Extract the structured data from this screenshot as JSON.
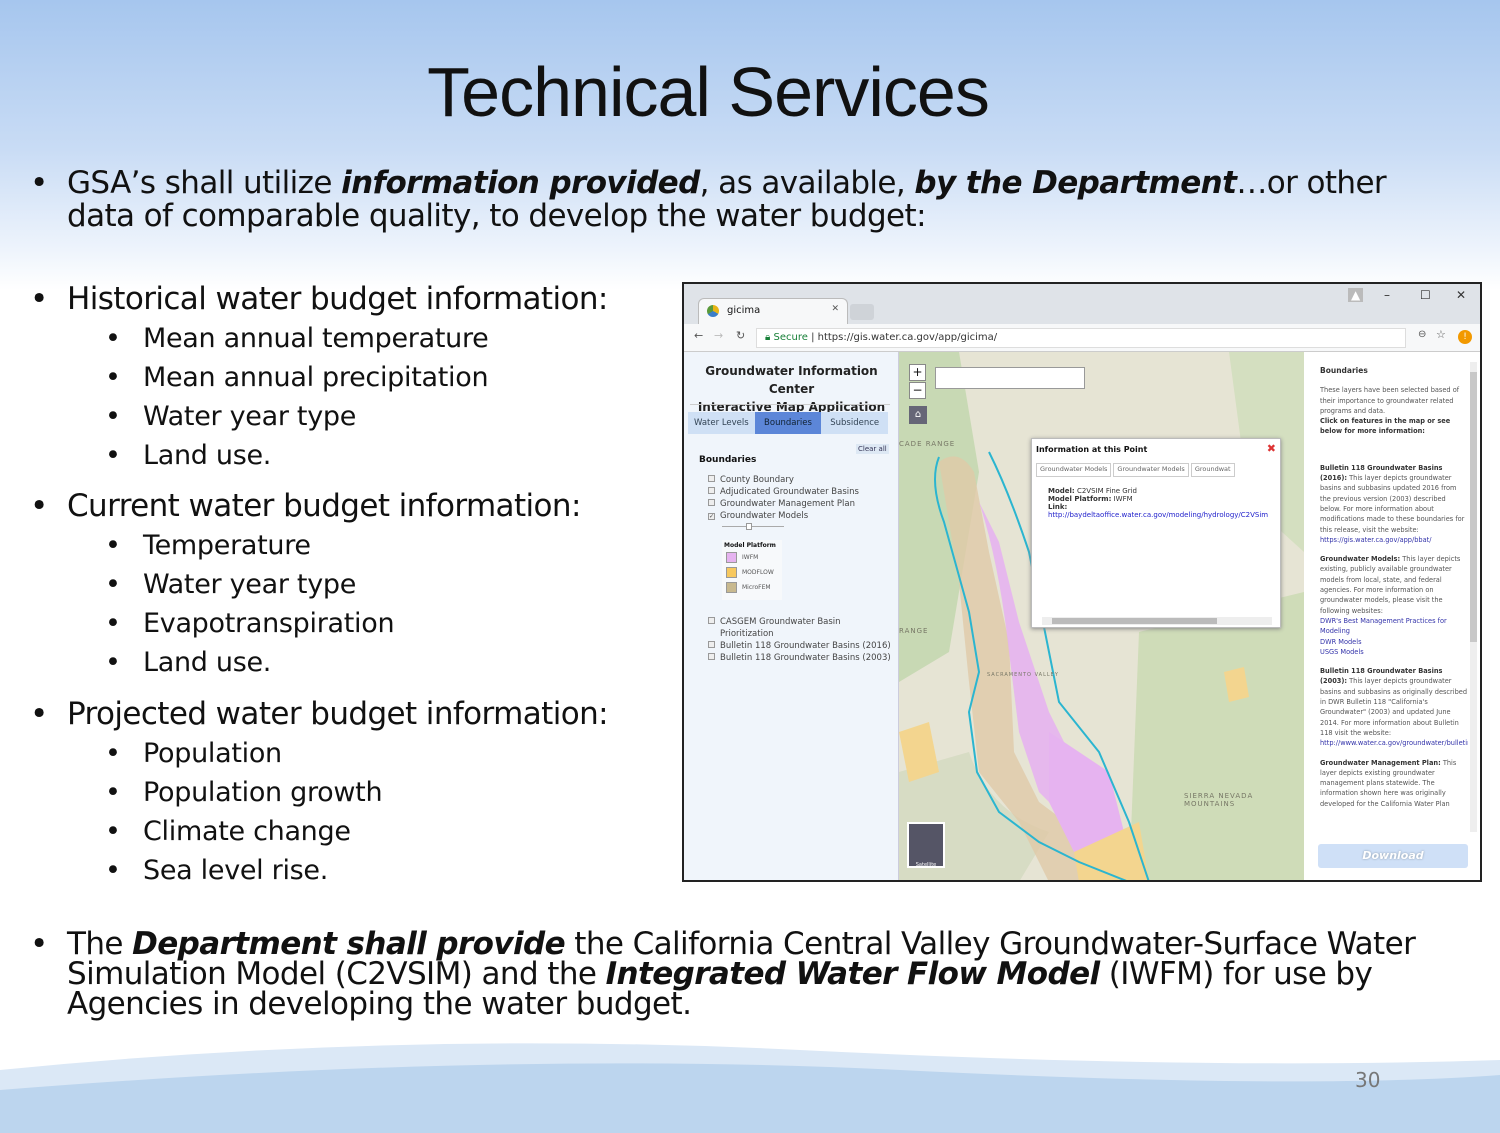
{
  "slide": {
    "title": "Technical Services",
    "page_number": "30"
  },
  "intro": {
    "pre": "GSA’s shall utilize ",
    "em1": "information provided",
    "mid": ", as available, ",
    "em2": "by the Department",
    "post": "…or other data of comparable quality, to develop the water budget:"
  },
  "sections": [
    {
      "heading": "Historical water budget information:",
      "items": [
        "Mean annual temperature",
        "Mean annual precipitation",
        "Water year type",
        "Land use."
      ]
    },
    {
      "heading": "Current water budget information:",
      "items": [
        "Temperature",
        "Water year type",
        "Evapotranspiration",
        "Land use."
      ]
    },
    {
      "heading": "Projected water budget information:",
      "items": [
        "Population",
        "Population growth",
        "Climate change",
        "Sea level rise."
      ]
    }
  ],
  "closing": {
    "pre": "The ",
    "em1": "Department shall provide",
    "mid": " the California Central Valley Groundwater-Surface Water Simulation Model (C2VSIM) and the ",
    "em2": "Integrated Water Flow Model",
    "post": " (IWFM) for use by Agencies in developing the water budget."
  },
  "browser": {
    "tab_title": "gicima",
    "secure": "Secure",
    "url": "https://gis.water.ca.gov/app/gicima/"
  },
  "app": {
    "title_line1": "Groundwater Information Center",
    "title_line2": "Interactive Map Application",
    "tabs": [
      "Water Levels",
      "Boundaries",
      "Subsidence"
    ],
    "active_tab": "Boundaries",
    "clear_all": "Clear all",
    "boundaries_heading": "Boundaries",
    "layers": [
      {
        "label": "County Boundary",
        "checked": false
      },
      {
        "label": "Adjudicated Groundwater Basins",
        "checked": false
      },
      {
        "label": "Groundwater Management Plan",
        "checked": false
      },
      {
        "label": "Groundwater Models",
        "checked": true
      }
    ],
    "layers2": [
      {
        "label": "CASGEM Groundwater Basin",
        "label2": "Prioritization",
        "checked": false
      },
      {
        "label": "Bulletin 118 Groundwater Basins (2016)",
        "checked": false
      },
      {
        "label": "Bulletin 118 Groundwater Basins (2003)",
        "checked": false
      }
    ],
    "legend": {
      "title": "Model Platform",
      "items": [
        {
          "label": "IWFM",
          "color": "#e6b3f0"
        },
        {
          "label": "MODFLOW",
          "color": "#f7c85e"
        },
        {
          "label": "MicroFEM",
          "color": "#c8b98f"
        }
      ]
    }
  },
  "map": {
    "popup": {
      "title": "Information at this Point",
      "tabs": [
        "Groundwater Models",
        "Groundwater Models",
        "Groundwat"
      ],
      "model_label": "Model:",
      "model": "C2VSIM Fine Grid",
      "platform_label": "Model Platform:",
      "platform": "IWFM",
      "link_label": "Link:",
      "link": "http://baydeltaoffice.water.ca.gov/modeling/hydrology/C2VSim"
    },
    "labels": [
      "SIERRA NEVADA MOUNTAINS",
      "SACRAMENTO VALLEY",
      "RANGE",
      "CADE RANGE"
    ],
    "satellite": "Satellite"
  },
  "info_panel": {
    "heading": "Boundaries",
    "intro": "These layers have been selected based of their importance to groundwater related programs and data.",
    "intro_bold": "Click on features in the map or see below for more information:",
    "entries": [
      {
        "title": "Bulletin 118 Groundwater Basins (2016):",
        "text": "This layer depicts groundwater basins and subbasins updated 2016 from the previous version (2003) described below. For more information about modifications made to these boundaries for this release, visit the website:",
        "links": [
          "https://gis.water.ca.gov/app/bbat/"
        ]
      },
      {
        "title": "Groundwater Models:",
        "text": "This layer depicts existing, publicly available groundwater models from local, state, and federal agencies. For more information on groundwater models, please visit the following websites:",
        "links": [
          "DWR's Best Management Practices for Modeling",
          "DWR Models",
          "USGS Models"
        ]
      },
      {
        "title": "Bulletin 118 Groundwater Basins (2003):",
        "text": "This layer depicts groundwater basins and subbasins as originally described in DWR Bulletin 118 \"California's Groundwater\" (2003) and updated June 2014. For more information about Bulletin 118 visit the website:",
        "links": [
          "http://www.water.ca.gov/groundwater/bulletin118.cfm"
        ]
      },
      {
        "title": "Groundwater Management Plan:",
        "text": "This layer depicts existing groundwater management plans statewide. The information shown here was originally developed for the California Water Plan",
        "links": []
      }
    ],
    "download": "Download"
  }
}
